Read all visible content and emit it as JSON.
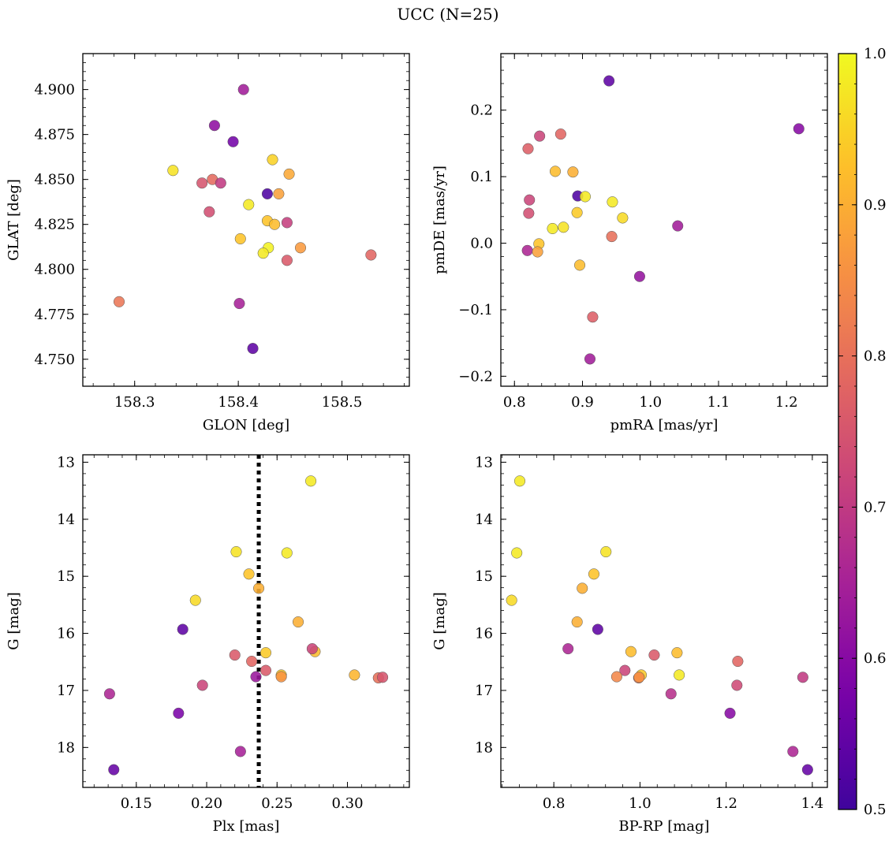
{
  "suptitle": "UCC (N=25)",
  "colorbar": {
    "min": 0.5,
    "max": 1.0,
    "ticks": [
      0.5,
      0.6,
      0.7,
      0.8,
      0.9,
      1.0
    ],
    "tick_labels": [
      "0.5",
      "0.6",
      "0.7",
      "0.8",
      "0.9",
      "1.0"
    ],
    "colormap": "plasma"
  },
  "chart_data": [
    {
      "type": "scatter",
      "xlabel": "GLON [deg]",
      "ylabel": "GLAT [deg]",
      "xlim": [
        158.25,
        158.565
      ],
      "ylim": [
        4.735,
        4.92
      ],
      "xticks": [
        158.3,
        158.4,
        158.5
      ],
      "xtick_labels": [
        "158.3",
        "158.4",
        "158.5"
      ],
      "yticks": [
        4.75,
        4.775,
        4.8,
        4.825,
        4.85,
        4.875,
        4.9
      ],
      "ytick_labels": [
        "4.750",
        "4.775",
        "4.800",
        "4.825",
        "4.850",
        "4.875",
        "4.900"
      ],
      "x": [
        158.405,
        158.377,
        158.395,
        158.337,
        158.375,
        158.365,
        158.383,
        158.372,
        158.433,
        158.428,
        158.449,
        158.439,
        158.41,
        158.428,
        158.435,
        158.447,
        158.402,
        158.429,
        158.424,
        158.46,
        158.447,
        158.528,
        158.285,
        158.401,
        158.414
      ],
      "y": [
        4.9,
        4.88,
        4.871,
        4.855,
        4.85,
        4.848,
        4.848,
        4.832,
        4.861,
        4.842,
        4.853,
        4.842,
        4.836,
        4.827,
        4.825,
        4.826,
        4.817,
        4.812,
        4.809,
        4.812,
        4.805,
        4.808,
        4.782,
        4.781,
        4.756
      ],
      "c": [
        0.64,
        0.61,
        0.57,
        0.97,
        0.79,
        0.75,
        0.7,
        0.74,
        0.95,
        0.52,
        0.89,
        0.88,
        0.98,
        0.93,
        0.92,
        0.71,
        0.93,
        0.99,
        0.98,
        0.87,
        0.76,
        0.78,
        0.81,
        0.65,
        0.54
      ]
    },
    {
      "type": "scatter",
      "xlabel": "pmRA [mas/yr]",
      "ylabel": "pmDE [mas/yr]",
      "xlim": [
        0.78,
        1.26
      ],
      "ylim": [
        -0.215,
        0.285
      ],
      "xticks": [
        0.8,
        0.9,
        1.0,
        1.1,
        1.2
      ],
      "xtick_labels": [
        "0.8",
        "0.9",
        "1.0",
        "1.1",
        "1.2"
      ],
      "yticks": [
        -0.2,
        -0.1,
        0.0,
        0.1,
        0.2
      ],
      "ytick_labels": [
        "−0.2",
        "−0.1",
        "0.0",
        "0.1",
        "0.2"
      ],
      "x": [
        0.939,
        1.218,
        0.837,
        0.868,
        0.82,
        0.86,
        0.886,
        0.822,
        0.893,
        0.904,
        0.944,
        0.821,
        0.959,
        0.892,
        0.856,
        0.872,
        0.836,
        1.04,
        0.943,
        0.819,
        0.834,
        0.896,
        0.984,
        0.915,
        0.911
      ],
      "y": [
        0.244,
        0.172,
        0.161,
        0.164,
        0.142,
        0.108,
        0.107,
        0.065,
        0.071,
        0.07,
        0.062,
        0.045,
        0.038,
        0.046,
        0.022,
        0.024,
        -0.001,
        0.026,
        0.01,
        -0.011,
        -0.013,
        -0.033,
        -0.05,
        -0.111,
        -0.174
      ],
      "c": [
        0.54,
        0.6,
        0.72,
        0.78,
        0.77,
        0.92,
        0.9,
        0.72,
        0.52,
        0.98,
        0.98,
        0.74,
        0.96,
        0.94,
        0.98,
        0.97,
        0.93,
        0.64,
        0.8,
        0.66,
        0.88,
        0.92,
        0.62,
        0.77,
        0.64
      ]
    },
    {
      "type": "scatter",
      "xlabel": "Plx [mas]",
      "ylabel": "G [mag]",
      "xlim": [
        0.112,
        0.344
      ],
      "ylim": [
        18.7,
        12.87
      ],
      "y_inverted": true,
      "vline": 0.237,
      "xticks": [
        0.15,
        0.2,
        0.25,
        0.3
      ],
      "xtick_labels": [
        "0.15",
        "0.20",
        "0.25",
        "0.30"
      ],
      "yticks": [
        13,
        14,
        15,
        16,
        17,
        18
      ],
      "ytick_labels": [
        "13",
        "14",
        "15",
        "16",
        "17",
        "18"
      ],
      "x": [
        0.274,
        0.221,
        0.257,
        0.23,
        0.237,
        0.192,
        0.265,
        0.183,
        0.277,
        0.275,
        0.242,
        0.22,
        0.232,
        0.242,
        0.253,
        0.253,
        0.235,
        0.305,
        0.322,
        0.325,
        0.197,
        0.131,
        0.18,
        0.224,
        0.134
      ],
      "y": [
        13.33,
        14.57,
        14.59,
        14.96,
        15.21,
        15.42,
        15.8,
        15.93,
        16.32,
        16.27,
        16.34,
        16.38,
        16.49,
        16.65,
        16.73,
        16.76,
        16.76,
        16.73,
        16.78,
        16.77,
        16.91,
        17.06,
        17.4,
        18.07,
        18.39
      ],
      "c": [
        0.98,
        0.97,
        0.98,
        0.93,
        0.9,
        0.96,
        0.9,
        0.54,
        0.92,
        0.72,
        0.94,
        0.76,
        0.78,
        0.76,
        0.94,
        0.86,
        0.63,
        0.91,
        0.8,
        0.75,
        0.72,
        0.66,
        0.58,
        0.65,
        0.55
      ]
    },
    {
      "type": "scatter",
      "xlabel": "BP-RP [mag]",
      "ylabel": "G [mag]",
      "xlim": [
        0.677,
        1.435
      ],
      "ylim": [
        18.7,
        12.87
      ],
      "y_inverted": true,
      "xticks": [
        0.8,
        1.0,
        1.2,
        1.4
      ],
      "xtick_labels": [
        "0.8",
        "1.0",
        "1.2",
        "1.4"
      ],
      "yticks": [
        13,
        14,
        15,
        16,
        17,
        18
      ],
      "ytick_labels": [
        "13",
        "14",
        "15",
        "16",
        "17",
        "18"
      ],
      "x": [
        0.721,
        0.714,
        0.921,
        0.893,
        0.866,
        0.702,
        0.854,
        0.902,
        0.979,
        0.833,
        1.086,
        1.033,
        1.227,
        0.965,
        0.946,
        1.003,
        0.997,
        1.091,
        1.378,
        1.225,
        1.072,
        1.209,
        1.355,
        1.389,
        0.998
      ],
      "y": [
        13.33,
        14.59,
        14.57,
        14.96,
        15.21,
        15.42,
        15.8,
        15.93,
        16.32,
        16.27,
        16.34,
        16.38,
        16.49,
        16.65,
        16.76,
        16.73,
        16.78,
        16.73,
        16.77,
        16.91,
        17.06,
        17.4,
        18.07,
        18.39,
        16.77
      ],
      "c": [
        0.98,
        0.98,
        0.97,
        0.93,
        0.9,
        0.96,
        0.9,
        0.54,
        0.92,
        0.66,
        0.92,
        0.76,
        0.78,
        0.72,
        0.84,
        0.94,
        0.8,
        0.98,
        0.7,
        0.73,
        0.68,
        0.6,
        0.66,
        0.55,
        0.86
      ]
    }
  ]
}
